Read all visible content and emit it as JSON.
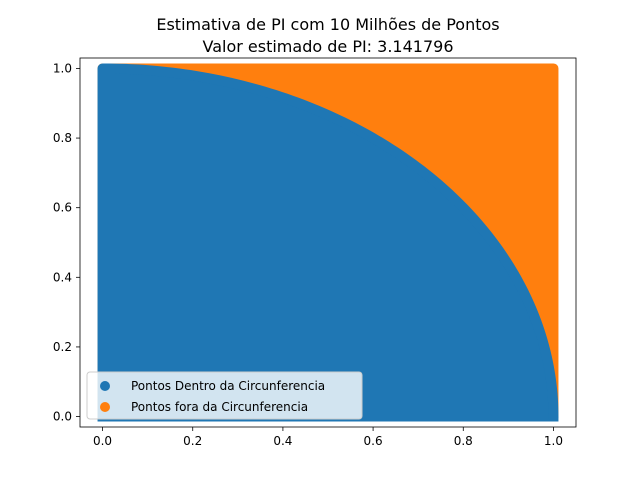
{
  "chart_data": {
    "type": "scatter",
    "title": "Estimativa de PI com 10 Milhões de Pontos",
    "subtitle": "Valor estimado de PI: 3.141796",
    "xlabel": "",
    "ylabel": "",
    "xlim": [
      -0.05,
      1.05
    ],
    "ylim": [
      -0.03,
      1.03
    ],
    "x_ticks": [
      0.0,
      0.2,
      0.4,
      0.6,
      0.8,
      1.0
    ],
    "x_tick_labels": [
      "0.0",
      "0.2",
      "0.4",
      "0.6",
      "0.8",
      "1.0"
    ],
    "y_ticks": [
      0.0,
      0.2,
      0.4,
      0.6,
      0.8,
      1.0
    ],
    "y_tick_labels": [
      "0.0",
      "0.2",
      "0.4",
      "0.6",
      "0.8",
      "1.0"
    ],
    "grid": false,
    "legend_position": "lower-left",
    "series": [
      {
        "name": "Pontos Dentro da Circunferencia",
        "color": "#1f77b4",
        "region": "x^2 + y^2 <= 1, 0 <= x <= 1, 0 <= y <= 1",
        "x": [
          0.0,
          1.0
        ],
        "y": [
          0.0,
          1.0
        ]
      },
      {
        "name": "Pontos fora da Circunferencia",
        "color": "#ff7f0e",
        "region": "x^2 + y^2 > 1, 0 <= x <= 1, 0 <= y <= 1",
        "x": [
          0.0,
          1.0
        ],
        "y": [
          0.0,
          1.0
        ]
      }
    ]
  }
}
